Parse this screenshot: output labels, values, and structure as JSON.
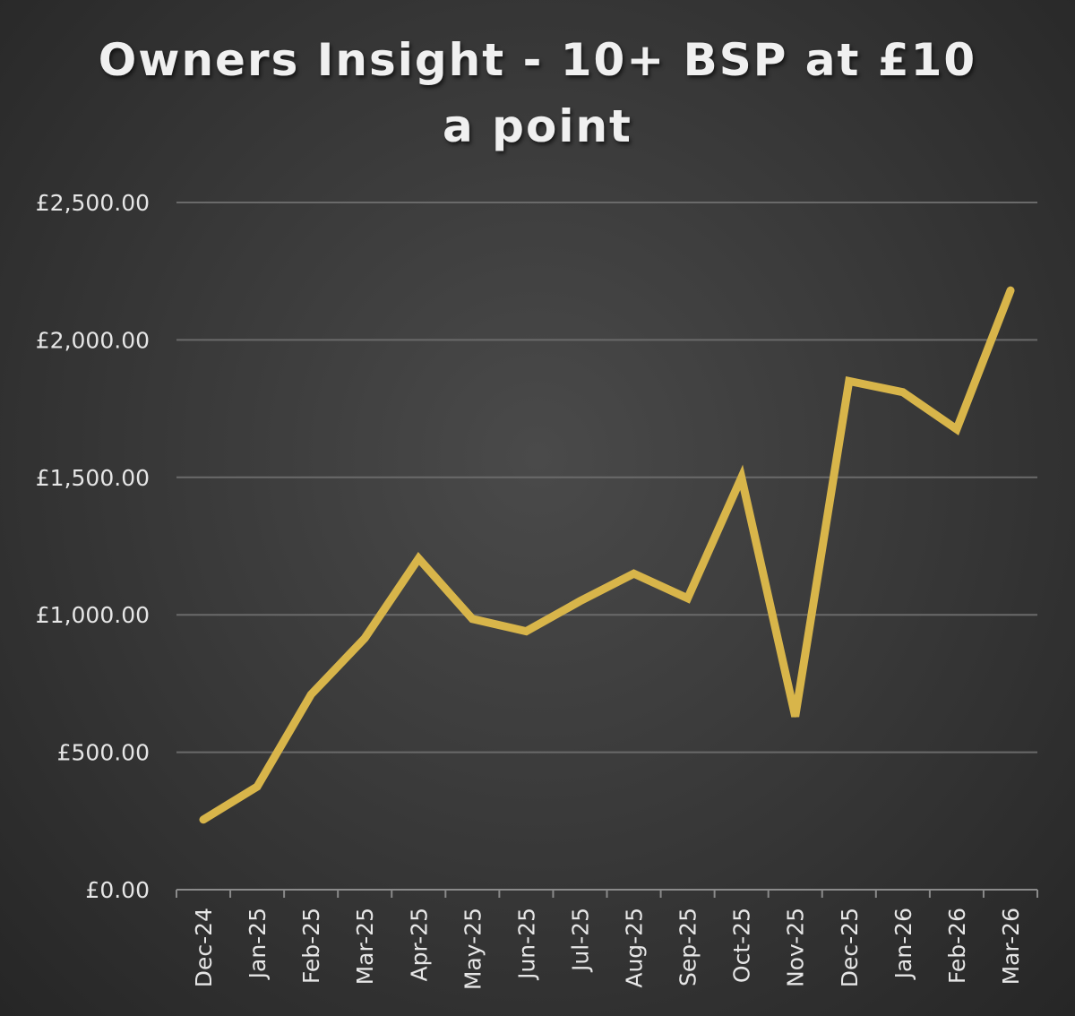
{
  "chart_data": {
    "type": "line",
    "title_lines": [
      "Owners Insight - 10+ BSP at £10",
      "a point"
    ],
    "xlabel": "",
    "ylabel": "",
    "categories": [
      "Dec-24",
      "Jan-25",
      "Feb-25",
      "Mar-25",
      "Apr-25",
      "May-25",
      "Jun-25",
      "Jul-25",
      "Aug-25",
      "Sep-25",
      "Oct-25",
      "Nov-25",
      "Dec-25",
      "Jan-26",
      "Feb-26",
      "Mar-26"
    ],
    "series": [
      {
        "values": [
          255,
          375,
          710,
          915,
          1205,
          985,
          940,
          1050,
          1150,
          1060,
          1500,
          630,
          1850,
          1810,
          1675,
          2180
        ]
      }
    ],
    "ylim": [
      0,
      2500
    ],
    "y_ticks": [
      0,
      500,
      1000,
      1500,
      2000,
      2500
    ],
    "y_tick_labels": [
      "£0.00",
      "£500.00",
      "£1,000.00",
      "£1,500.00",
      "£2,000.00",
      "£2,500.00"
    ],
    "grid": true,
    "legend": "none",
    "colors": {
      "line": "#d8b54a",
      "grid": "#6a6a6a",
      "axis": "#8a8a8a",
      "text": "#e6e6e6"
    }
  }
}
